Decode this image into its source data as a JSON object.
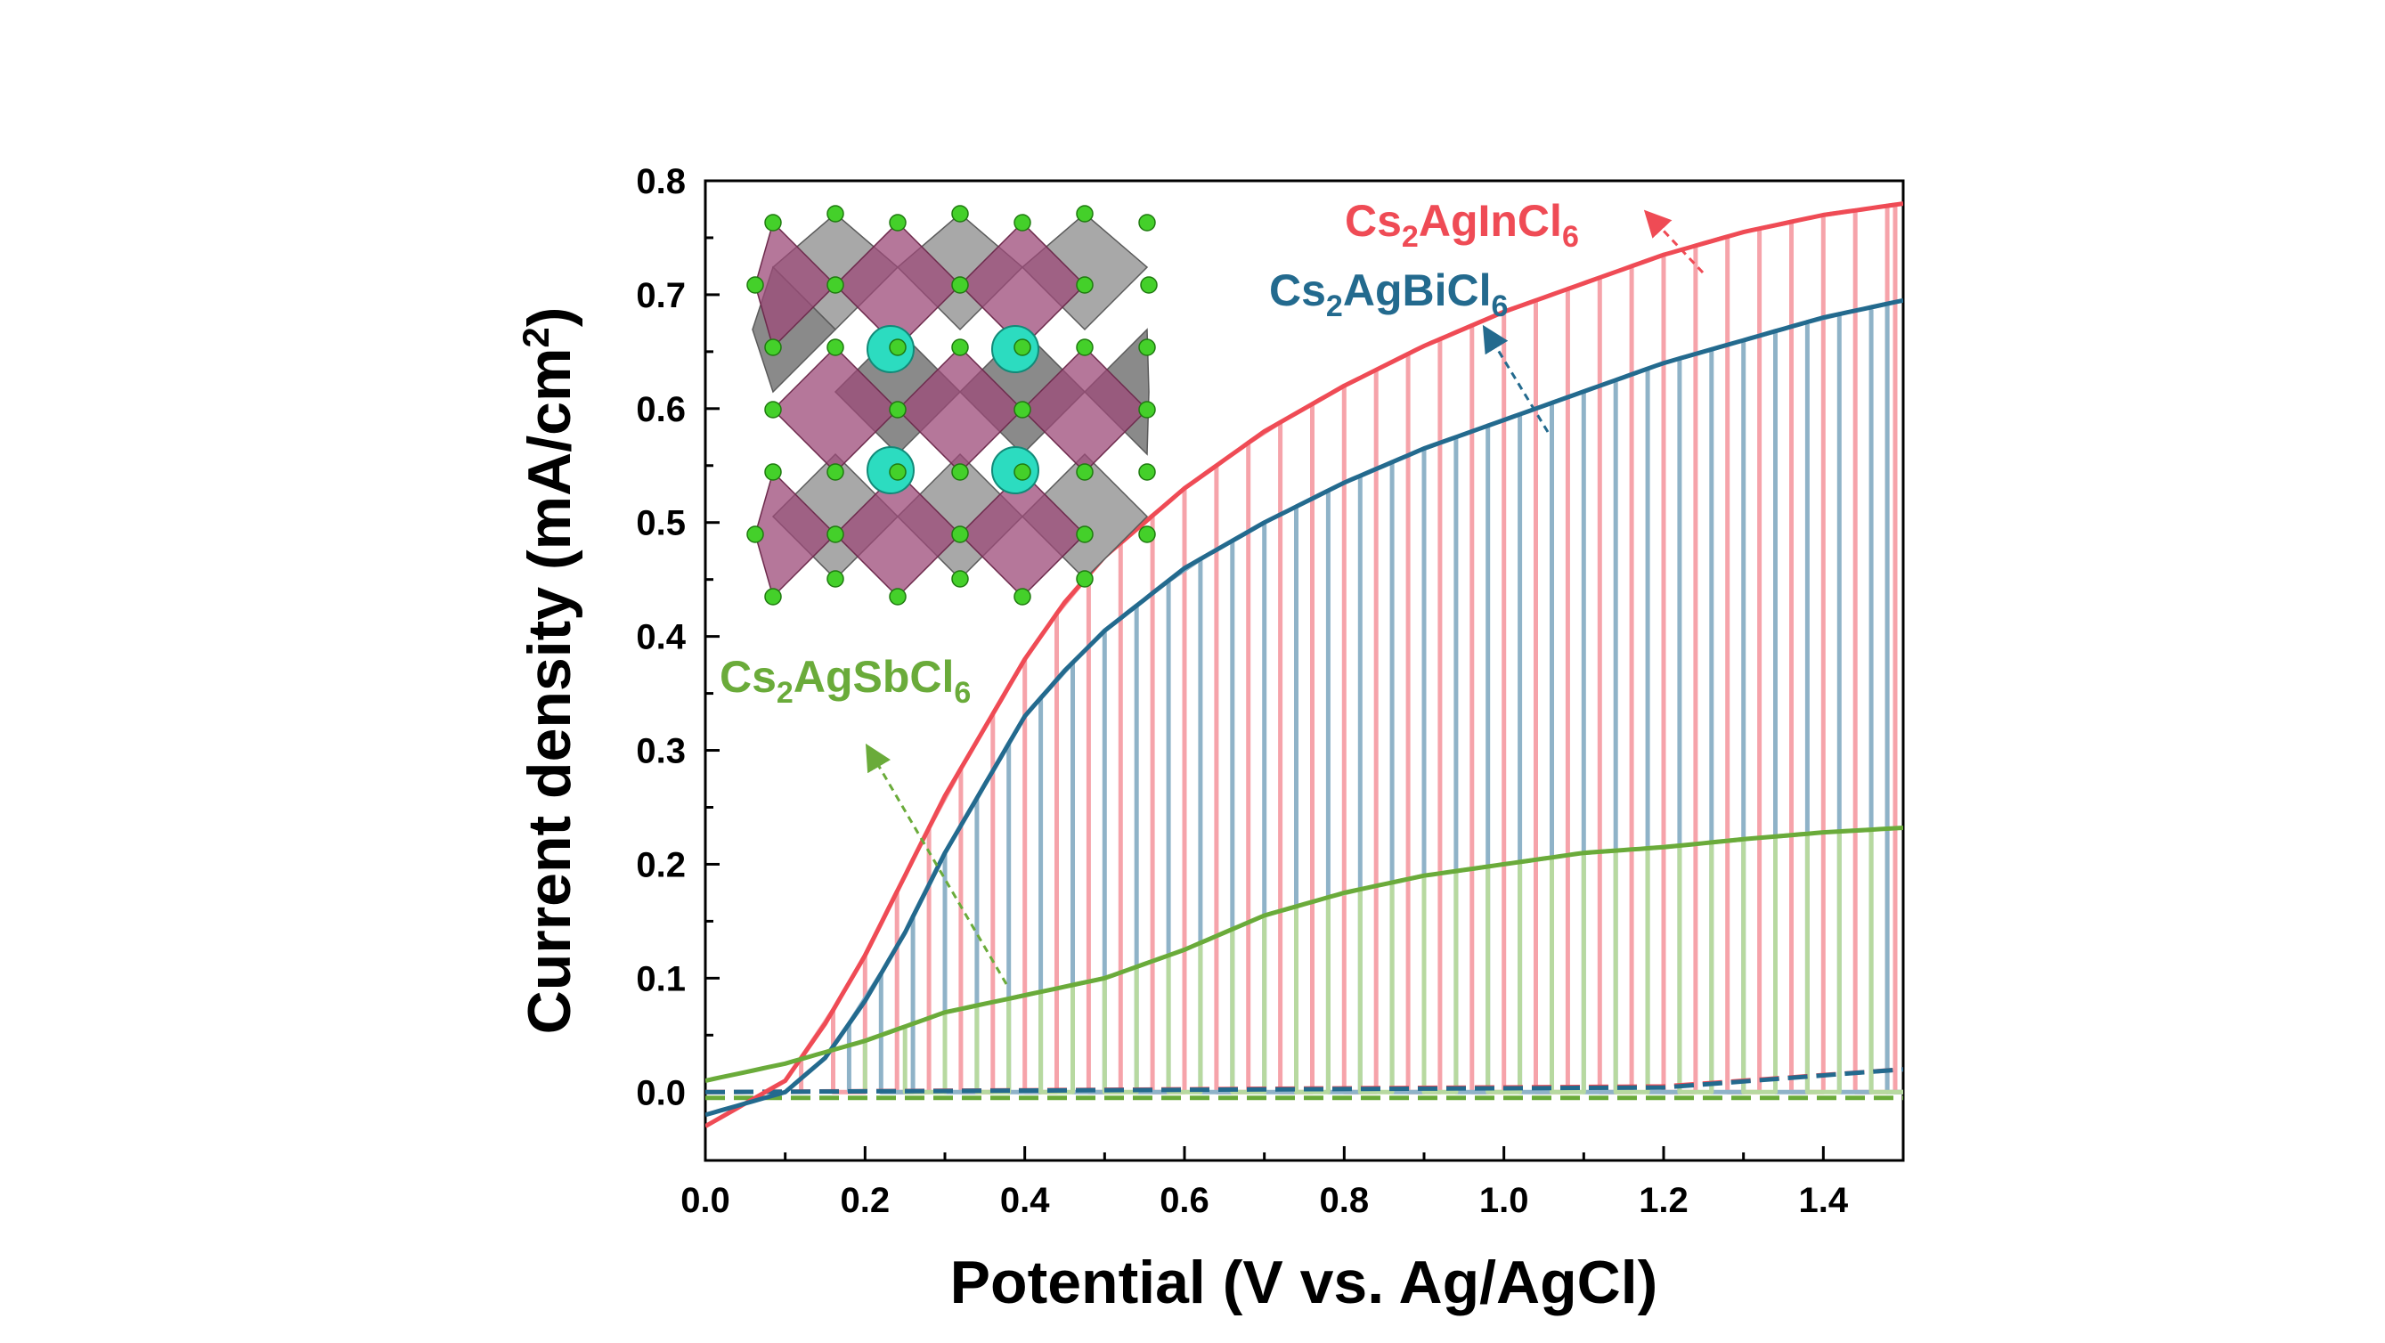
{
  "chart_data": {
    "type": "line",
    "xlabel": "Potential (V vs. Ag/AgCl)",
    "ylabel": "Current density (mA/cm",
    "ylabel_sup": "2",
    "ylabel_close": ")",
    "xlim": [
      0.0,
      1.5
    ],
    "ylim": [
      -0.06,
      0.8
    ],
    "xticks": [
      "0.0",
      "0.2",
      "0.4",
      "0.6",
      "0.8",
      "1.0",
      "1.2",
      "1.4"
    ],
    "yticks": [
      "0.0",
      "0.1",
      "0.2",
      "0.3",
      "0.4",
      "0.5",
      "0.6",
      "0.7",
      "0.8"
    ],
    "grid": false,
    "inset": "crystal-structure",
    "series": [
      {
        "name": "Cs2AgInCl6",
        "label_parts": [
          "Cs",
          "2",
          "AgInCl",
          "6"
        ],
        "color": "#ef4b55",
        "x": [
          0.0,
          0.1,
          0.15,
          0.2,
          0.25,
          0.3,
          0.35,
          0.4,
          0.45,
          0.5,
          0.6,
          0.7,
          0.8,
          0.9,
          1.0,
          1.1,
          1.2,
          1.3,
          1.4,
          1.5
        ],
        "y": [
          -0.03,
          0.01,
          0.06,
          0.12,
          0.19,
          0.26,
          0.32,
          0.38,
          0.43,
          0.47,
          0.53,
          0.58,
          0.62,
          0.655,
          0.685,
          0.71,
          0.735,
          0.755,
          0.77,
          0.78
        ],
        "chopped_on": [
          0.5,
          0.62,
          0.735,
          0.765
        ],
        "chopped_at": [
          0.12,
          0.2,
          0.28,
          0.36,
          0.44,
          0.52,
          0.6,
          0.68,
          0.76,
          0.84,
          0.92,
          1.0,
          1.08,
          1.16,
          1.24,
          1.32,
          1.4,
          1.48
        ]
      },
      {
        "name": "Cs2AgBiCl6",
        "label_parts": [
          "Cs",
          "2",
          "AgBiCl",
          "6"
        ],
        "color": "#236a8e",
        "x": [
          0.0,
          0.1,
          0.15,
          0.2,
          0.25,
          0.3,
          0.35,
          0.4,
          0.45,
          0.5,
          0.6,
          0.7,
          0.8,
          0.9,
          1.0,
          1.1,
          1.2,
          1.3,
          1.4,
          1.5
        ],
        "y": [
          -0.02,
          0.0,
          0.03,
          0.08,
          0.14,
          0.21,
          0.27,
          0.33,
          0.37,
          0.405,
          0.46,
          0.5,
          0.535,
          0.565,
          0.59,
          0.615,
          0.64,
          0.66,
          0.68,
          0.695
        ],
        "chopped_at": [
          0.18,
          0.26,
          0.34,
          0.42,
          0.5,
          0.58,
          0.66,
          0.74,
          0.82,
          0.9,
          0.98,
          1.06,
          1.14,
          1.22,
          1.3,
          1.38,
          1.46
        ]
      },
      {
        "name": "Cs2AgSbCl6",
        "label_parts": [
          "Cs",
          "2",
          "AgSbCl",
          "6"
        ],
        "color": "#6aab3a",
        "x": [
          0.0,
          0.1,
          0.2,
          0.3,
          0.4,
          0.5,
          0.6,
          0.7,
          0.8,
          0.9,
          1.0,
          1.1,
          1.2,
          1.3,
          1.4,
          1.5
        ],
        "y": [
          0.01,
          0.025,
          0.045,
          0.07,
          0.085,
          0.1,
          0.125,
          0.155,
          0.175,
          0.19,
          0.2,
          0.21,
          0.215,
          0.222,
          0.228,
          0.232
        ],
        "chopped_at": [
          0.2,
          0.3,
          0.38,
          0.46,
          0.54,
          0.62,
          0.7,
          0.78,
          0.86,
          0.94,
          1.02,
          1.1,
          1.18,
          1.26,
          1.34,
          1.42
        ]
      }
    ],
    "dark_current": [
      {
        "name": "Cs2AgInCl6 dark",
        "color": "#ef4b55",
        "x": [
          0.0,
          1.2,
          1.5
        ],
        "y": [
          0.0,
          0.005,
          0.02
        ]
      },
      {
        "name": "Cs2AgBiCl6 dark",
        "color": "#236a8e",
        "x": [
          0.0,
          1.2,
          1.5
        ],
        "y": [
          0.0,
          0.004,
          0.02
        ]
      },
      {
        "name": "Cs2AgSbCl6 dark",
        "color": "#6aab3a",
        "x": [
          0.0,
          1.5
        ],
        "y": [
          -0.005,
          -0.005
        ]
      }
    ]
  }
}
